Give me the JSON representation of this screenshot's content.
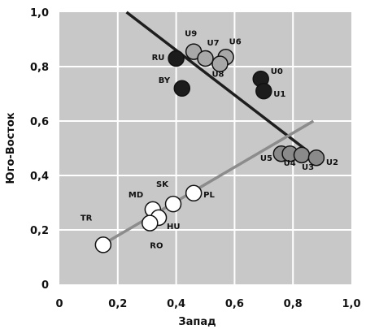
{
  "chart_data": {
    "type": "scatter",
    "xlabel": "Запад",
    "ylabel": "Юго-Восток",
    "xlim": [
      0,
      1.0
    ],
    "ylim": [
      0,
      1.0
    ],
    "x_ticks": [
      "0",
      "0,2",
      "0,4",
      "0,6",
      "0,8",
      "1,0"
    ],
    "y_ticks": [
      "0",
      "0,2",
      "0,4",
      "0,6",
      "0,8",
      "1,0"
    ],
    "grid": true,
    "plot_background": "#c8c8c8",
    "colors": {
      "black": "#1c1c1c",
      "light_gray": "#a8a8a8",
      "mid_gray": "#8a8a8a",
      "white": "#ffffff",
      "dark_line": "#1e1e1e",
      "gray_line": "#8c8c8c"
    },
    "trend_lines": [
      {
        "color": "dark_line",
        "x": [
          0.23,
          0.85
        ],
        "y": [
          1.0,
          0.49
        ]
      },
      {
        "color": "gray_line",
        "x": [
          0.17,
          0.87
        ],
        "y": [
          0.16,
          0.6
        ]
      }
    ],
    "points": [
      {
        "label": "RU",
        "x": 0.4,
        "y": 0.83,
        "fill": "black"
      },
      {
        "label": "BY",
        "x": 0.42,
        "y": 0.72,
        "fill": "black"
      },
      {
        "label": "U0",
        "x": 0.69,
        "y": 0.755,
        "fill": "black"
      },
      {
        "label": "U1",
        "x": 0.7,
        "y": 0.71,
        "fill": "black"
      },
      {
        "label": "U9",
        "x": 0.46,
        "y": 0.855,
        "fill": "light_gray"
      },
      {
        "label": "U7",
        "x": 0.5,
        "y": 0.83,
        "fill": "light_gray"
      },
      {
        "label": "U6",
        "x": 0.57,
        "y": 0.835,
        "fill": "light_gray"
      },
      {
        "label": "U8",
        "x": 0.55,
        "y": 0.81,
        "fill": "light_gray"
      },
      {
        "label": "U5",
        "x": 0.76,
        "y": 0.48,
        "fill": "mid_gray"
      },
      {
        "label": "U4",
        "x": 0.79,
        "y": 0.48,
        "fill": "mid_gray"
      },
      {
        "label": "U3",
        "x": 0.83,
        "y": 0.475,
        "fill": "mid_gray"
      },
      {
        "label": "U2",
        "x": 0.88,
        "y": 0.465,
        "fill": "mid_gray"
      },
      {
        "label": "TR",
        "x": 0.15,
        "y": 0.145,
        "fill": "white"
      },
      {
        "label": "MD",
        "x": 0.32,
        "y": 0.275,
        "fill": "white"
      },
      {
        "label": "SK",
        "x": 0.39,
        "y": 0.295,
        "fill": "white"
      },
      {
        "label": "PL",
        "x": 0.46,
        "y": 0.335,
        "fill": "white"
      },
      {
        "label": "HU",
        "x": 0.34,
        "y": 0.245,
        "fill": "white"
      },
      {
        "label": "RO",
        "x": 0.31,
        "y": 0.225,
        "fill": "white"
      }
    ]
  }
}
